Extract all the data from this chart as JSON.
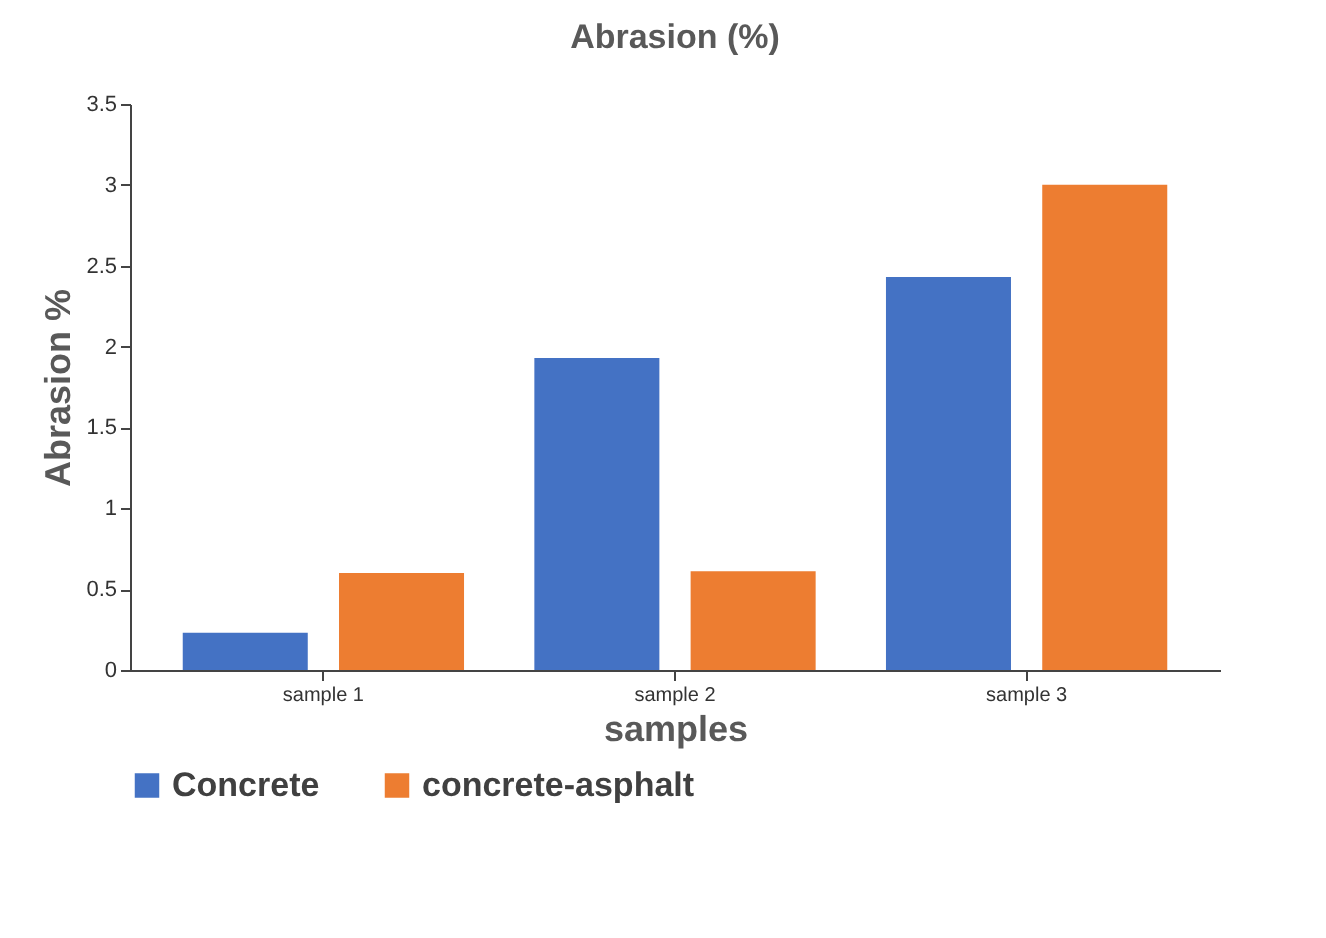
{
  "chart_data": {
    "type": "bar",
    "title": "Abrasion (%)",
    "xlabel": "samples",
    "ylabel": "Abrasion  %",
    "categories": [
      "sample 1",
      "sample 2",
      "sample 3"
    ],
    "series": [
      {
        "name": "Concrete",
        "color": "#4472c4",
        "values": [
          0.23,
          1.93,
          2.43
        ]
      },
      {
        "name": "concrete-asphalt",
        "color": "#ed7d31",
        "values": [
          0.6,
          0.61,
          3.0
        ]
      }
    ],
    "ylim": [
      0,
      3.5
    ],
    "yticks": [
      0,
      0.5,
      1,
      1.5,
      2,
      2.5,
      3,
      3.5
    ],
    "grid": false,
    "legend": "bottom"
  }
}
